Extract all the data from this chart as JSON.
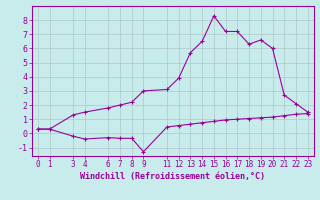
{
  "xlabel": "Windchill (Refroidissement éolien,°C)",
  "background_color": "#c8ecec",
  "line_color": "#990099",
  "grid_color": "#b0c8c8",
  "spine_color": "#666666",
  "xlim": [
    -0.5,
    23.5
  ],
  "ylim": [
    -1.6,
    9.0
  ],
  "xticks": [
    0,
    1,
    3,
    4,
    6,
    7,
    8,
    9,
    11,
    12,
    13,
    14,
    15,
    16,
    17,
    18,
    19,
    20,
    21,
    22,
    23
  ],
  "yticks": [
    -1,
    0,
    1,
    2,
    3,
    4,
    5,
    6,
    7,
    8
  ],
  "series1_x": [
    0,
    1,
    3,
    4,
    6,
    7,
    8,
    9,
    11,
    12,
    13,
    14,
    15,
    16,
    17,
    18,
    19,
    20,
    21,
    22,
    23
  ],
  "series1_y": [
    0.3,
    0.3,
    -0.2,
    -0.4,
    -0.3,
    -0.35,
    -0.35,
    -1.3,
    0.45,
    0.55,
    0.65,
    0.75,
    0.85,
    0.95,
    1.0,
    1.05,
    1.1,
    1.15,
    1.25,
    1.35,
    1.4
  ],
  "series2_x": [
    0,
    1,
    3,
    4,
    6,
    7,
    8,
    9,
    11,
    12,
    13,
    14,
    15,
    16,
    17,
    18,
    19,
    20,
    21,
    22,
    23
  ],
  "series2_y": [
    0.3,
    0.3,
    1.3,
    1.5,
    1.8,
    2.0,
    2.2,
    3.0,
    3.1,
    3.9,
    5.7,
    6.5,
    8.3,
    7.2,
    7.2,
    6.3,
    6.6,
    6.0,
    2.7,
    2.1,
    1.5
  ],
  "tick_fontsize": 5.5,
  "xlabel_fontsize": 6.0,
  "marker_size": 3.5,
  "line_width": 0.8
}
